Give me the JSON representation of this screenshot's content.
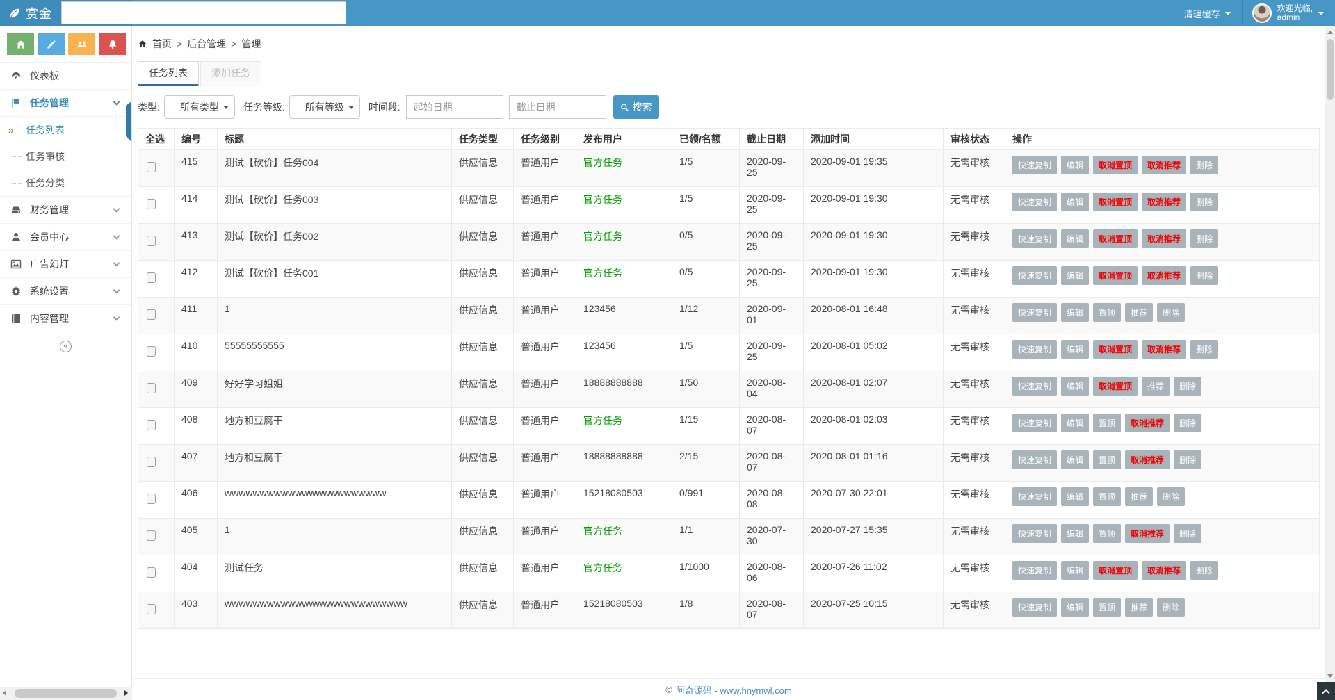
{
  "header": {
    "logo_text": "赏金",
    "clear_cache_label": "清理缓存",
    "welcome_line1": "欢迎光临,",
    "welcome_line2": "admin"
  },
  "sidebar": {
    "active_marker": "»",
    "collapse_glyph": "«",
    "items": [
      {
        "label": "仪表板",
        "icon": "gauge-icon"
      },
      {
        "label": "任务管理",
        "icon": "flag-icon",
        "active": true,
        "children": [
          {
            "label": "任务列表",
            "active": true
          },
          {
            "label": "任务审核"
          },
          {
            "label": "任务分类"
          }
        ]
      },
      {
        "label": "财务管理",
        "icon": "drive-icon"
      },
      {
        "label": "会员中心",
        "icon": "user-icon"
      },
      {
        "label": "广告幻灯",
        "icon": "image-icon"
      },
      {
        "label": "系统设置",
        "icon": "gear-icon"
      },
      {
        "label": "内容管理",
        "icon": "book-icon"
      }
    ]
  },
  "breadcrumb": {
    "separator": ">",
    "items": [
      "首页",
      "后台管理",
      "管理"
    ]
  },
  "tabs": [
    {
      "label": "任务列表",
      "active": true
    },
    {
      "label": "添加任务",
      "active": false
    }
  ],
  "filters": {
    "type_label": "类型:",
    "type_value": "所有类型",
    "level_label": "任务等级:",
    "level_value": "所有等级",
    "period_label": "时间段:",
    "start_placeholder": "起始日期",
    "end_placeholder": "截止日期",
    "search_label": "搜索"
  },
  "table": {
    "headers": [
      "全选",
      "编号",
      "标题",
      "任务类型",
      "任务级别",
      "发布用户",
      "已领/名额",
      "截止日期",
      "添加时间",
      "审核状态",
      "操作"
    ],
    "rows": [
      {
        "id": "415",
        "title": "测试【砍价】任务004",
        "type": "供应信息",
        "level": "普通用户",
        "publisher": "官方任务",
        "official": true,
        "quota": "1/5",
        "deadline": "2020-09-25",
        "added": "2020-09-01 19:35",
        "audit": "无需审核",
        "actions": [
          {
            "label": "快速复制",
            "name": "quick-copy-button"
          },
          {
            "label": "编辑",
            "name": "edit-button"
          },
          {
            "label": "取消置顶",
            "name": "cancel-pin-button",
            "danger": true
          },
          {
            "label": "取消推荐",
            "name": "cancel-recommend-button",
            "danger": true
          },
          {
            "label": "删除",
            "name": "delete-button"
          }
        ]
      },
      {
        "id": "414",
        "title": "测试【砍价】任务003",
        "type": "供应信息",
        "level": "普通用户",
        "publisher": "官方任务",
        "official": true,
        "quota": "1/5",
        "deadline": "2020-09-25",
        "added": "2020-09-01 19:30",
        "audit": "无需审核",
        "actions": [
          {
            "label": "快速复制",
            "name": "quick-copy-button"
          },
          {
            "label": "编辑",
            "name": "edit-button"
          },
          {
            "label": "取消置顶",
            "name": "cancel-pin-button",
            "danger": true
          },
          {
            "label": "取消推荐",
            "name": "cancel-recommend-button",
            "danger": true
          },
          {
            "label": "删除",
            "name": "delete-button"
          }
        ]
      },
      {
        "id": "413",
        "title": "测试【砍价】任务002",
        "type": "供应信息",
        "level": "普通用户",
        "publisher": "官方任务",
        "official": true,
        "quota": "0/5",
        "deadline": "2020-09-25",
        "added": "2020-09-01 19:30",
        "audit": "无需审核",
        "actions": [
          {
            "label": "快速复制",
            "name": "quick-copy-button"
          },
          {
            "label": "编辑",
            "name": "edit-button"
          },
          {
            "label": "取消置顶",
            "name": "cancel-pin-button",
            "danger": true
          },
          {
            "label": "取消推荐",
            "name": "cancel-recommend-button",
            "danger": true
          },
          {
            "label": "删除",
            "name": "delete-button"
          }
        ]
      },
      {
        "id": "412",
        "title": "测试【砍价】任务001",
        "type": "供应信息",
        "level": "普通用户",
        "publisher": "官方任务",
        "official": true,
        "quota": "0/5",
        "deadline": "2020-09-25",
        "added": "2020-09-01 19:30",
        "audit": "无需审核",
        "actions": [
          {
            "label": "快速复制",
            "name": "quick-copy-button"
          },
          {
            "label": "编辑",
            "name": "edit-button"
          },
          {
            "label": "取消置顶",
            "name": "cancel-pin-button",
            "danger": true
          },
          {
            "label": "取消推荐",
            "name": "cancel-recommend-button",
            "danger": true
          },
          {
            "label": "删除",
            "name": "delete-button"
          }
        ]
      },
      {
        "id": "411",
        "title": "1",
        "type": "供应信息",
        "level": "普通用户",
        "publisher": "123456",
        "official": false,
        "quota": "1/12",
        "deadline": "2020-09-01",
        "added": "2020-08-01 16:48",
        "audit": "无需审核",
        "actions": [
          {
            "label": "快速复制",
            "name": "quick-copy-button"
          },
          {
            "label": "编辑",
            "name": "edit-button"
          },
          {
            "label": "置顶",
            "name": "pin-button"
          },
          {
            "label": "推荐",
            "name": "recommend-button"
          },
          {
            "label": "删除",
            "name": "delete-button"
          }
        ]
      },
      {
        "id": "410",
        "title": "55555555555",
        "type": "供应信息",
        "level": "普通用户",
        "publisher": "123456",
        "official": false,
        "quota": "1/5",
        "deadline": "2020-09-25",
        "added": "2020-08-01 05:02",
        "audit": "无需审核",
        "actions": [
          {
            "label": "快速复制",
            "name": "quick-copy-button"
          },
          {
            "label": "编辑",
            "name": "edit-button"
          },
          {
            "label": "取消置顶",
            "name": "cancel-pin-button",
            "danger": true
          },
          {
            "label": "取消推荐",
            "name": "cancel-recommend-button",
            "danger": true
          },
          {
            "label": "删除",
            "name": "delete-button"
          }
        ]
      },
      {
        "id": "409",
        "title": "好好学习姐姐",
        "type": "供应信息",
        "level": "普通用户",
        "publisher": "18888888888",
        "official": false,
        "quota": "1/50",
        "deadline": "2020-08-04",
        "added": "2020-08-01 02:07",
        "audit": "无需审核",
        "actions": [
          {
            "label": "快速复制",
            "name": "quick-copy-button"
          },
          {
            "label": "编辑",
            "name": "edit-button"
          },
          {
            "label": "取消置顶",
            "name": "cancel-pin-button",
            "danger": true
          },
          {
            "label": "推荐",
            "name": "recommend-button"
          },
          {
            "label": "删除",
            "name": "delete-button"
          }
        ]
      },
      {
        "id": "408",
        "title": "地方和豆腐干",
        "type": "供应信息",
        "level": "普通用户",
        "publisher": "官方任务",
        "official": true,
        "quota": "1/15",
        "deadline": "2020-08-07",
        "added": "2020-08-01 02:03",
        "audit": "无需审核",
        "actions": [
          {
            "label": "快速复制",
            "name": "quick-copy-button"
          },
          {
            "label": "编辑",
            "name": "edit-button"
          },
          {
            "label": "置顶",
            "name": "pin-button"
          },
          {
            "label": "取消推荐",
            "name": "cancel-recommend-button",
            "danger": true
          },
          {
            "label": "删除",
            "name": "delete-button"
          }
        ]
      },
      {
        "id": "407",
        "title": "地方和豆腐干",
        "type": "供应信息",
        "level": "普通用户",
        "publisher": "18888888888",
        "official": false,
        "quota": "2/15",
        "deadline": "2020-08-07",
        "added": "2020-08-01 01:16",
        "audit": "无需审核",
        "actions": [
          {
            "label": "快速复制",
            "name": "quick-copy-button"
          },
          {
            "label": "编辑",
            "name": "edit-button"
          },
          {
            "label": "置顶",
            "name": "pin-button"
          },
          {
            "label": "取消推荐",
            "name": "cancel-recommend-button",
            "danger": true
          },
          {
            "label": "删除",
            "name": "delete-button"
          }
        ]
      },
      {
        "id": "406",
        "title": "wwwwwwwwwwwwwwwwwwwwwww",
        "type": "供应信息",
        "level": "普通用户",
        "publisher": "15218080503",
        "official": false,
        "quota": "0/991",
        "deadline": "2020-08-08",
        "added": "2020-07-30 22:01",
        "audit": "无需审核",
        "actions": [
          {
            "label": "快速复制",
            "name": "quick-copy-button"
          },
          {
            "label": "编辑",
            "name": "edit-button"
          },
          {
            "label": "置顶",
            "name": "pin-button"
          },
          {
            "label": "推荐",
            "name": "recommend-button"
          },
          {
            "label": "删除",
            "name": "delete-button"
          }
        ]
      },
      {
        "id": "405",
        "title": "1",
        "type": "供应信息",
        "level": "普通用户",
        "publisher": "官方任务",
        "official": true,
        "quota": "1/1",
        "deadline": "2020-07-30",
        "added": "2020-07-27 15:35",
        "audit": "无需审核",
        "actions": [
          {
            "label": "快速复制",
            "name": "quick-copy-button"
          },
          {
            "label": "编辑",
            "name": "edit-button"
          },
          {
            "label": "置顶",
            "name": "pin-button"
          },
          {
            "label": "取消推荐",
            "name": "cancel-recommend-button",
            "danger": true
          },
          {
            "label": "删除",
            "name": "delete-button"
          }
        ]
      },
      {
        "id": "404",
        "title": "测试任务",
        "type": "供应信息",
        "level": "普通用户",
        "publisher": "官方任务",
        "official": true,
        "quota": "1/1000",
        "deadline": "2020-08-06",
        "added": "2020-07-26 11:02",
        "audit": "无需审核",
        "actions": [
          {
            "label": "快速复制",
            "name": "quick-copy-button"
          },
          {
            "label": "编辑",
            "name": "edit-button"
          },
          {
            "label": "取消置顶",
            "name": "cancel-pin-button",
            "danger": true
          },
          {
            "label": "取消推荐",
            "name": "cancel-recommend-button",
            "danger": true
          },
          {
            "label": "删除",
            "name": "delete-button"
          }
        ]
      },
      {
        "id": "403",
        "title": "wwwwwwwwwwwwwwwwwwwwwwwwww",
        "type": "供应信息",
        "level": "普通用户",
        "publisher": "15218080503",
        "official": false,
        "quota": "1/8",
        "deadline": "2020-08-07",
        "added": "2020-07-25 10:15",
        "audit": "无需审核",
        "actions": [
          {
            "label": "快速复制",
            "name": "quick-copy-button"
          },
          {
            "label": "编辑",
            "name": "edit-button"
          },
          {
            "label": "置顶",
            "name": "pin-button"
          },
          {
            "label": "推荐",
            "name": "recommend-button"
          },
          {
            "label": "删除",
            "name": "delete-button"
          }
        ]
      }
    ]
  },
  "footer": {
    "symbol": "©",
    "text": "阿奇源码 - www.hnymwl.com"
  },
  "colors": {
    "header_blue": "#4697C6",
    "logo_blue": "#3E8CBA",
    "link_blue": "#3C8DBC",
    "tab_underline_blue": "#2E6DA4",
    "official_green": "#00A000",
    "danger_red": "#F20000",
    "action_button_gray": "#A9B3BA",
    "quick_green": "#74B06F",
    "quick_blue": "#58ABE0",
    "quick_orange": "#F8B250",
    "quick_red": "#D9534F"
  }
}
